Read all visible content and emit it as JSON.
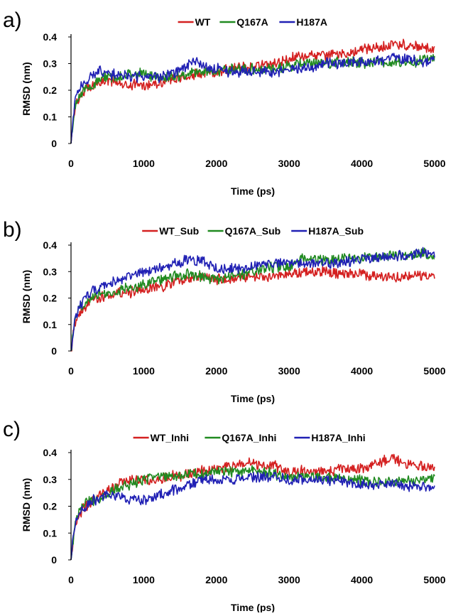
{
  "figure": {
    "panels": [
      {
        "label": "a)"
      },
      {
        "label": "b)"
      },
      {
        "label": "c)"
      }
    ]
  },
  "chart_data": [
    {
      "type": "line",
      "xlabel": "Time (ps)",
      "ylabel": "RMSD (nm)",
      "xlim": [
        0,
        5000
      ],
      "ylim": [
        0,
        0.4
      ],
      "xticks": [
        "0",
        "1000",
        "2000",
        "3000",
        "4000",
        "5000"
      ],
      "yticks": [
        "0",
        "0.1",
        "0.2",
        "0.3",
        "0.4"
      ],
      "grid": false,
      "legend": "top-center",
      "x": [
        0,
        50,
        100,
        200,
        300,
        400,
        500,
        600,
        800,
        1000,
        1200,
        1400,
        1600,
        1700,
        1800,
        2000,
        2200,
        2500,
        2800,
        3000,
        3200,
        3500,
        3800,
        4000,
        4200,
        4400,
        4600,
        4800,
        5000
      ],
      "series": [
        {
          "name": "WT",
          "color": "#d42020",
          "values": [
            0.0,
            0.13,
            0.17,
            0.2,
            0.22,
            0.23,
            0.24,
            0.23,
            0.22,
            0.22,
            0.23,
            0.24,
            0.25,
            0.26,
            0.26,
            0.27,
            0.28,
            0.29,
            0.3,
            0.32,
            0.33,
            0.33,
            0.34,
            0.35,
            0.36,
            0.37,
            0.37,
            0.36,
            0.35
          ]
        },
        {
          "name": "Q167A",
          "color": "#208a20",
          "values": [
            0.0,
            0.14,
            0.18,
            0.2,
            0.22,
            0.24,
            0.25,
            0.25,
            0.26,
            0.26,
            0.25,
            0.25,
            0.26,
            0.27,
            0.27,
            0.27,
            0.28,
            0.28,
            0.28,
            0.29,
            0.3,
            0.3,
            0.31,
            0.3,
            0.31,
            0.3,
            0.3,
            0.31,
            0.32
          ]
        },
        {
          "name": "H187A",
          "color": "#2020b4",
          "values": [
            0.0,
            0.15,
            0.2,
            0.24,
            0.25,
            0.28,
            0.26,
            0.26,
            0.25,
            0.25,
            0.25,
            0.26,
            0.29,
            0.31,
            0.29,
            0.28,
            0.27,
            0.27,
            0.27,
            0.28,
            0.28,
            0.3,
            0.3,
            0.31,
            0.31,
            0.32,
            0.32,
            0.31,
            0.31
          ]
        }
      ]
    },
    {
      "type": "line",
      "xlabel": "Time (ps)",
      "ylabel": "RMSD (nm)",
      "xlim": [
        0,
        5000
      ],
      "ylim": [
        0,
        0.4
      ],
      "xticks": [
        "0",
        "1000",
        "2000",
        "3000",
        "4000",
        "5000"
      ],
      "yticks": [
        "0",
        "0.1",
        "0.2",
        "0.3",
        "0.4"
      ],
      "grid": false,
      "legend": "top-center",
      "x": [
        0,
        50,
        100,
        200,
        300,
        400,
        500,
        600,
        800,
        1000,
        1200,
        1400,
        1600,
        1800,
        2000,
        2200,
        2500,
        2800,
        3000,
        3200,
        3500,
        3800,
        4000,
        4200,
        4400,
        4600,
        4800,
        5000
      ],
      "series": [
        {
          "name": "WT_Sub",
          "color": "#d42020",
          "values": [
            0.0,
            0.1,
            0.14,
            0.17,
            0.2,
            0.2,
            0.21,
            0.22,
            0.22,
            0.23,
            0.24,
            0.26,
            0.27,
            0.28,
            0.27,
            0.27,
            0.28,
            0.28,
            0.29,
            0.3,
            0.3,
            0.29,
            0.29,
            0.28,
            0.28,
            0.28,
            0.28,
            0.28
          ]
        },
        {
          "name": "Q167A_Sub",
          "color": "#208a20",
          "values": [
            0.0,
            0.11,
            0.15,
            0.19,
            0.21,
            0.22,
            0.22,
            0.22,
            0.24,
            0.25,
            0.27,
            0.28,
            0.29,
            0.28,
            0.27,
            0.28,
            0.3,
            0.32,
            0.32,
            0.35,
            0.34,
            0.35,
            0.35,
            0.36,
            0.36,
            0.36,
            0.37,
            0.36
          ]
        },
        {
          "name": "H187A_Sub",
          "color": "#2020b4",
          "values": [
            0.0,
            0.12,
            0.16,
            0.2,
            0.23,
            0.24,
            0.25,
            0.26,
            0.28,
            0.3,
            0.31,
            0.33,
            0.34,
            0.34,
            0.31,
            0.31,
            0.32,
            0.33,
            0.33,
            0.33,
            0.33,
            0.34,
            0.35,
            0.35,
            0.36,
            0.36,
            0.37,
            0.37
          ]
        }
      ]
    },
    {
      "type": "line",
      "xlabel": "Time (ps)",
      "ylabel": "RMSD (nm)",
      "xlim": [
        0,
        5000
      ],
      "ylim": [
        0,
        0.4
      ],
      "xticks": [
        "0",
        "1000",
        "2000",
        "3000",
        "4000",
        "5000"
      ],
      "yticks": [
        "0",
        "0.1",
        "0.2",
        "0.3",
        "0.4"
      ],
      "grid": false,
      "legend": "top-center",
      "x": [
        0,
        50,
        100,
        200,
        300,
        400,
        500,
        600,
        800,
        1000,
        1200,
        1400,
        1600,
        1800,
        2000,
        2200,
        2500,
        2800,
        3000,
        3200,
        3500,
        3800,
        4000,
        4200,
        4400,
        4600,
        4800,
        5000
      ],
      "series": [
        {
          "name": "WT_Inhi",
          "color": "#d42020",
          "values": [
            0.0,
            0.12,
            0.16,
            0.2,
            0.22,
            0.24,
            0.26,
            0.27,
            0.3,
            0.3,
            0.3,
            0.31,
            0.32,
            0.33,
            0.34,
            0.35,
            0.36,
            0.35,
            0.33,
            0.33,
            0.33,
            0.34,
            0.34,
            0.36,
            0.38,
            0.36,
            0.35,
            0.34
          ]
        },
        {
          "name": "Q167A_Inhi",
          "color": "#208a20",
          "values": [
            0.0,
            0.13,
            0.17,
            0.21,
            0.22,
            0.23,
            0.25,
            0.26,
            0.28,
            0.3,
            0.31,
            0.31,
            0.32,
            0.32,
            0.33,
            0.33,
            0.33,
            0.32,
            0.31,
            0.31,
            0.31,
            0.3,
            0.3,
            0.29,
            0.29,
            0.29,
            0.3,
            0.31
          ]
        },
        {
          "name": "H187A_Inhi",
          "color": "#2020b4",
          "values": [
            0.0,
            0.13,
            0.17,
            0.2,
            0.22,
            0.23,
            0.25,
            0.24,
            0.23,
            0.22,
            0.24,
            0.26,
            0.28,
            0.3,
            0.3,
            0.3,
            0.31,
            0.31,
            0.3,
            0.3,
            0.3,
            0.29,
            0.28,
            0.28,
            0.28,
            0.28,
            0.27,
            0.28
          ]
        }
      ]
    }
  ]
}
